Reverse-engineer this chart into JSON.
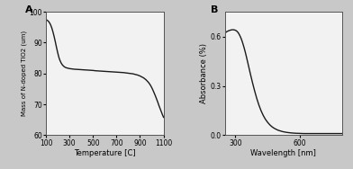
{
  "panel_A": {
    "label": "A",
    "xlabel": "Temperature [C]",
    "ylabel": "Mass of N-doped TiO2 (um)",
    "xlim": [
      100,
      1100
    ],
    "ylim": [
      60,
      100
    ],
    "xticks": [
      100,
      300,
      500,
      700,
      900,
      1100
    ],
    "yticks": [
      60,
      70,
      80,
      90,
      100
    ],
    "line_color": "#1a1a1a",
    "curve": {
      "x": [
        100,
        110,
        120,
        130,
        140,
        150,
        160,
        170,
        180,
        190,
        200,
        210,
        220,
        230,
        240,
        250,
        260,
        270,
        280,
        290,
        300,
        320,
        340,
        360,
        380,
        400,
        420,
        440,
        460,
        480,
        500,
        520,
        540,
        560,
        580,
        600,
        620,
        640,
        660,
        680,
        700,
        720,
        740,
        760,
        780,
        800,
        820,
        840,
        860,
        880,
        900,
        910,
        920,
        930,
        940,
        950,
        960,
        970,
        980,
        990,
        1000,
        1010,
        1020,
        1030,
        1040,
        1050,
        1060,
        1070,
        1080,
        1090,
        1100
      ],
      "y": [
        97.5,
        97.3,
        97.0,
        96.5,
        95.8,
        94.8,
        93.5,
        92.0,
        90.3,
        88.5,
        86.8,
        85.3,
        84.2,
        83.4,
        82.8,
        82.4,
        82.1,
        81.9,
        81.8,
        81.7,
        81.6,
        81.5,
        81.4,
        81.35,
        81.3,
        81.25,
        81.2,
        81.15,
        81.1,
        81.05,
        81.0,
        80.9,
        80.85,
        80.8,
        80.75,
        80.7,
        80.65,
        80.6,
        80.55,
        80.5,
        80.45,
        80.4,
        80.35,
        80.3,
        80.2,
        80.1,
        80.0,
        79.9,
        79.7,
        79.5,
        79.2,
        79.0,
        78.8,
        78.6,
        78.3,
        78.0,
        77.6,
        77.2,
        76.7,
        76.1,
        75.4,
        74.6,
        73.7,
        72.8,
        71.8,
        70.8,
        69.7,
        68.7,
        67.7,
        66.7,
        65.8
      ]
    }
  },
  "panel_B": {
    "label": "B",
    "xlabel": "Wavelength [nm]",
    "ylabel": "Absorbance (%)",
    "xlim": [
      250,
      800
    ],
    "ylim": [
      0.0,
      0.75
    ],
    "xticks": [
      300,
      600
    ],
    "yticks": [
      0.0,
      0.3,
      0.6
    ],
    "line_color": "#1a1a1a",
    "curve": {
      "x": [
        250,
        255,
        260,
        265,
        270,
        275,
        280,
        285,
        290,
        295,
        300,
        305,
        310,
        315,
        320,
        325,
        330,
        335,
        340,
        345,
        350,
        360,
        370,
        380,
        390,
        400,
        410,
        420,
        430,
        440,
        450,
        460,
        470,
        480,
        490,
        500,
        520,
        540,
        560,
        580,
        600,
        620,
        640,
        660,
        680,
        700,
        720,
        740,
        760,
        780,
        800
      ],
      "y": [
        0.62,
        0.625,
        0.63,
        0.633,
        0.636,
        0.638,
        0.64,
        0.641,
        0.641,
        0.64,
        0.638,
        0.634,
        0.628,
        0.619,
        0.607,
        0.593,
        0.576,
        0.556,
        0.534,
        0.51,
        0.484,
        0.428,
        0.372,
        0.318,
        0.268,
        0.222,
        0.182,
        0.148,
        0.12,
        0.097,
        0.079,
        0.064,
        0.052,
        0.043,
        0.036,
        0.03,
        0.022,
        0.017,
        0.014,
        0.012,
        0.011,
        0.01,
        0.01,
        0.01,
        0.01,
        0.01,
        0.01,
        0.01,
        0.01,
        0.01,
        0.01
      ]
    }
  },
  "figure_facecolor": "#c8c8c8",
  "axes_facecolor": "#f2f2f2"
}
